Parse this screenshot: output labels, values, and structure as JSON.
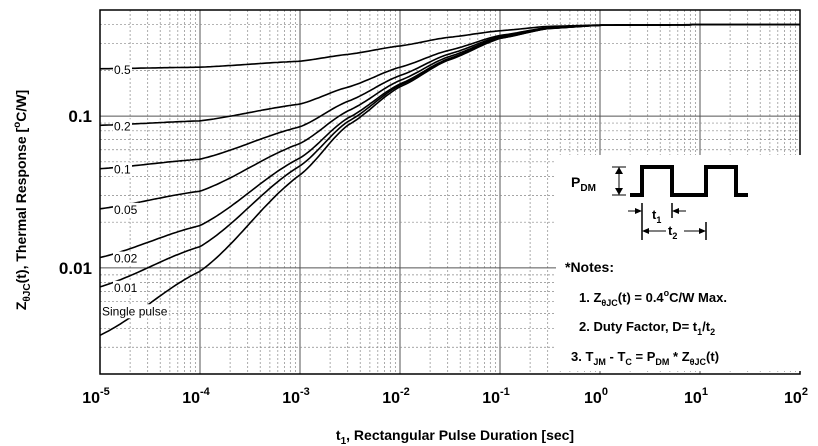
{
  "chart_data": {
    "type": "line",
    "x_scale": "log",
    "y_scale": "log",
    "xlim": [
      1e-05,
      100
    ],
    "ylim": [
      0.002,
      0.5
    ],
    "grid": true,
    "xlabel": {
      "base": "t",
      "sub": "1",
      "rest": ", Rectangular Pulse Duration [sec]"
    },
    "ylabel": {
      "base": "Z",
      "sub": "θJC",
      "rest1": "(t), Thermal Response [",
      "sup": "o",
      "rest2": "C/W]"
    },
    "x_ticks": [
      {
        "value": 1e-05,
        "base": "10",
        "exp": "-5"
      },
      {
        "value": 0.0001,
        "base": "10",
        "exp": "-4"
      },
      {
        "value": 0.001,
        "base": "10",
        "exp": "-3"
      },
      {
        "value": 0.01,
        "base": "10",
        "exp": "-2"
      },
      {
        "value": 0.1,
        "base": "10",
        "exp": "-1"
      },
      {
        "value": 1,
        "base": "10",
        "exp": "0"
      },
      {
        "value": 10,
        "base": "10",
        "exp": "1"
      },
      {
        "value": 100,
        "base": "10",
        "exp": "2"
      }
    ],
    "y_ticks": [
      {
        "value": 0.1,
        "label": "0.1"
      },
      {
        "value": 0.01,
        "label": "0.01"
      }
    ],
    "series": [
      {
        "name": "0.5",
        "points": [
          [
            1e-05,
            0.205
          ],
          [
            0.0001,
            0.21
          ],
          [
            0.001,
            0.23
          ],
          [
            0.003,
            0.255
          ],
          [
            0.01,
            0.29
          ],
          [
            0.03,
            0.33
          ],
          [
            0.1,
            0.365
          ],
          [
            0.3,
            0.39
          ],
          [
            1,
            0.398
          ],
          [
            10,
            0.4
          ],
          [
            100,
            0.4
          ]
        ]
      },
      {
        "name": "0.2",
        "points": [
          [
            1e-05,
            0.087
          ],
          [
            0.0001,
            0.093
          ],
          [
            0.001,
            0.12
          ],
          [
            0.003,
            0.155
          ],
          [
            0.01,
            0.21
          ],
          [
            0.03,
            0.27
          ],
          [
            0.1,
            0.34
          ],
          [
            0.3,
            0.383
          ],
          [
            1,
            0.397
          ],
          [
            10,
            0.4
          ],
          [
            100,
            0.4
          ]
        ]
      },
      {
        "name": "0.1",
        "points": [
          [
            1e-05,
            0.045
          ],
          [
            0.0001,
            0.052
          ],
          [
            0.001,
            0.085
          ],
          [
            0.003,
            0.125
          ],
          [
            0.01,
            0.185
          ],
          [
            0.03,
            0.255
          ],
          [
            0.1,
            0.335
          ],
          [
            0.3,
            0.38
          ],
          [
            1,
            0.397
          ],
          [
            10,
            0.4
          ],
          [
            100,
            0.4
          ]
        ]
      },
      {
        "name": "0.05",
        "points": [
          [
            1e-05,
            0.0245
          ],
          [
            0.0001,
            0.032
          ],
          [
            0.001,
            0.066
          ],
          [
            0.003,
            0.108
          ],
          [
            0.01,
            0.172
          ],
          [
            0.03,
            0.245
          ],
          [
            0.1,
            0.33
          ],
          [
            0.3,
            0.379
          ],
          [
            1,
            0.397
          ],
          [
            10,
            0.4
          ],
          [
            100,
            0.4
          ]
        ]
      },
      {
        "name": "0.02",
        "points": [
          [
            1e-05,
            0.0117
          ],
          [
            0.0001,
            0.019
          ],
          [
            0.001,
            0.053
          ],
          [
            0.003,
            0.097
          ],
          [
            0.01,
            0.163
          ],
          [
            0.03,
            0.238
          ],
          [
            0.1,
            0.327
          ],
          [
            0.3,
            0.378
          ],
          [
            1,
            0.397
          ],
          [
            10,
            0.4
          ],
          [
            100,
            0.4
          ]
        ]
      },
      {
        "name": "0.01",
        "points": [
          [
            1e-05,
            0.0075
          ],
          [
            0.0001,
            0.0138
          ],
          [
            0.001,
            0.047
          ],
          [
            0.003,
            0.092
          ],
          [
            0.01,
            0.16
          ],
          [
            0.03,
            0.236
          ],
          [
            0.1,
            0.326
          ],
          [
            0.3,
            0.378
          ],
          [
            1,
            0.397
          ],
          [
            10,
            0.4
          ],
          [
            100,
            0.4
          ]
        ]
      },
      {
        "name": "Single pulse",
        "points": [
          [
            1e-05,
            0.0036
          ],
          [
            0.0001,
            0.0095
          ],
          [
            0.001,
            0.041
          ],
          [
            0.003,
            0.087
          ],
          [
            0.01,
            0.156
          ],
          [
            0.03,
            0.233
          ],
          [
            0.1,
            0.325
          ],
          [
            0.3,
            0.377
          ],
          [
            1,
            0.397
          ],
          [
            10,
            0.4
          ],
          [
            100,
            0.4
          ]
        ]
      }
    ],
    "inset": {
      "pdm_label": {
        "base": "P",
        "sub": "DM"
      },
      "t1_label": {
        "base": "t",
        "sub": "1"
      },
      "t2_label": {
        "base": "t",
        "sub": "2"
      }
    },
    "notes": {
      "title": "*Notes:",
      "line1": {
        "a": "1. Z",
        "sub": "θJC",
        "b": "(t) = 0.4",
        "sup": "o",
        "c": "C/W Max."
      },
      "line2": {
        "a": "2. Duty Factor, D= t",
        "sub1": "1",
        "b": "/t",
        "sub2": "2"
      },
      "line3": {
        "a": "3. T",
        "sub1": "JM",
        "b": " - T",
        "sub2": "C",
        "c": " = P",
        "sub3": "DM",
        "d": " * Z",
        "sub4": "θJC",
        "e": "(t)"
      }
    }
  }
}
